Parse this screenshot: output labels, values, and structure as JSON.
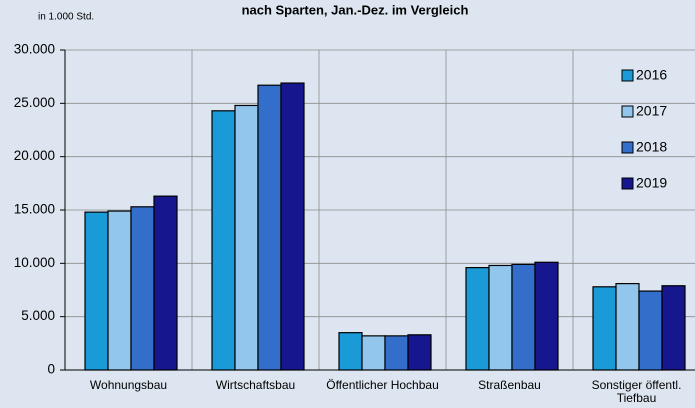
{
  "chart_data": {
    "type": "bar",
    "title": "nach Sparten, Jan.-Dez. im Vergleich",
    "y_axis_label": "in 1.000 Std.",
    "categories": [
      "Wohnungsbau",
      "Wirtschaftsbau",
      "Öffentlicher Hochbau",
      "Straßenbau",
      "Sonstiger öffentl. Tiefbau"
    ],
    "series": [
      {
        "name": "2016",
        "color": "#1a9ad6",
        "values": [
          14800,
          24300,
          3500,
          9600,
          7800
        ]
      },
      {
        "name": "2017",
        "color": "#92c6ec",
        "values": [
          14900,
          24800,
          3200,
          9800,
          8100
        ]
      },
      {
        "name": "2018",
        "color": "#346ecb",
        "values": [
          15300,
          26700,
          3200,
          9900,
          7400
        ]
      },
      {
        "name": "2019",
        "color": "#16168f",
        "values": [
          16300,
          26900,
          3300,
          10100,
          7900
        ]
      }
    ],
    "ylim": [
      0,
      30000
    ],
    "yticks": [
      0,
      {
        "value": 5000,
        "label": "5.000"
      },
      {
        "value": 10000,
        "label": "10.000"
      },
      {
        "value": 15000,
        "label": "15.000"
      },
      {
        "value": 20000,
        "label": "20.000"
      },
      {
        "value": 25000,
        "label": "25.000"
      },
      {
        "value": 30000,
        "label": "30.000"
      }
    ],
    "grid": true,
    "legend": "right"
  }
}
